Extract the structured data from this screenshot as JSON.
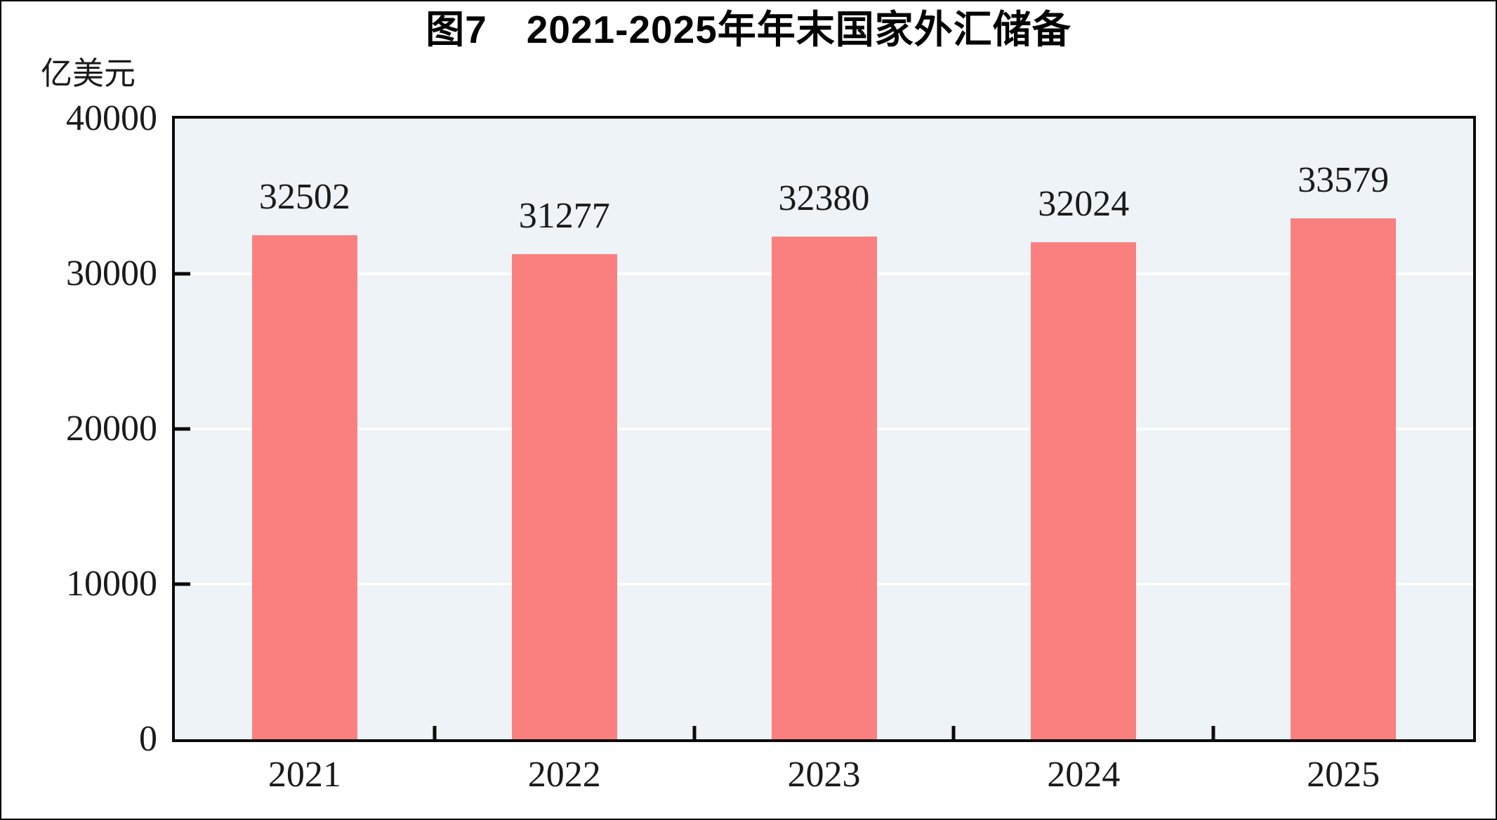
{
  "figure": {
    "title": "图7　2021-2025年年末国家外汇储备",
    "unit_label": "亿美元"
  },
  "chart_data": {
    "type": "bar",
    "title": "图7　2021-2025年年末国家外汇储备",
    "ylabel": "亿美元",
    "categories": [
      "2021",
      "2022",
      "2023",
      "2024",
      "2025"
    ],
    "values": [
      32502,
      31277,
      32380,
      32024,
      33579
    ],
    "data_labels": [
      "32502",
      "31277",
      "32380",
      "32024",
      "33579"
    ],
    "ylim": [
      0,
      40000
    ],
    "yticks": [
      0,
      10000,
      20000,
      30000,
      40000
    ],
    "ytick_labels": [
      "0",
      "10000",
      "20000",
      "30000",
      "40000"
    ],
    "grid": true,
    "legend": "none",
    "colors": {
      "bar": "#fa8080",
      "plot_background": "#edf3f7",
      "gridline": "#ffffff",
      "axis": "#0a0a0a",
      "text": "#1a1a1a",
      "title_text": "#000000"
    }
  }
}
